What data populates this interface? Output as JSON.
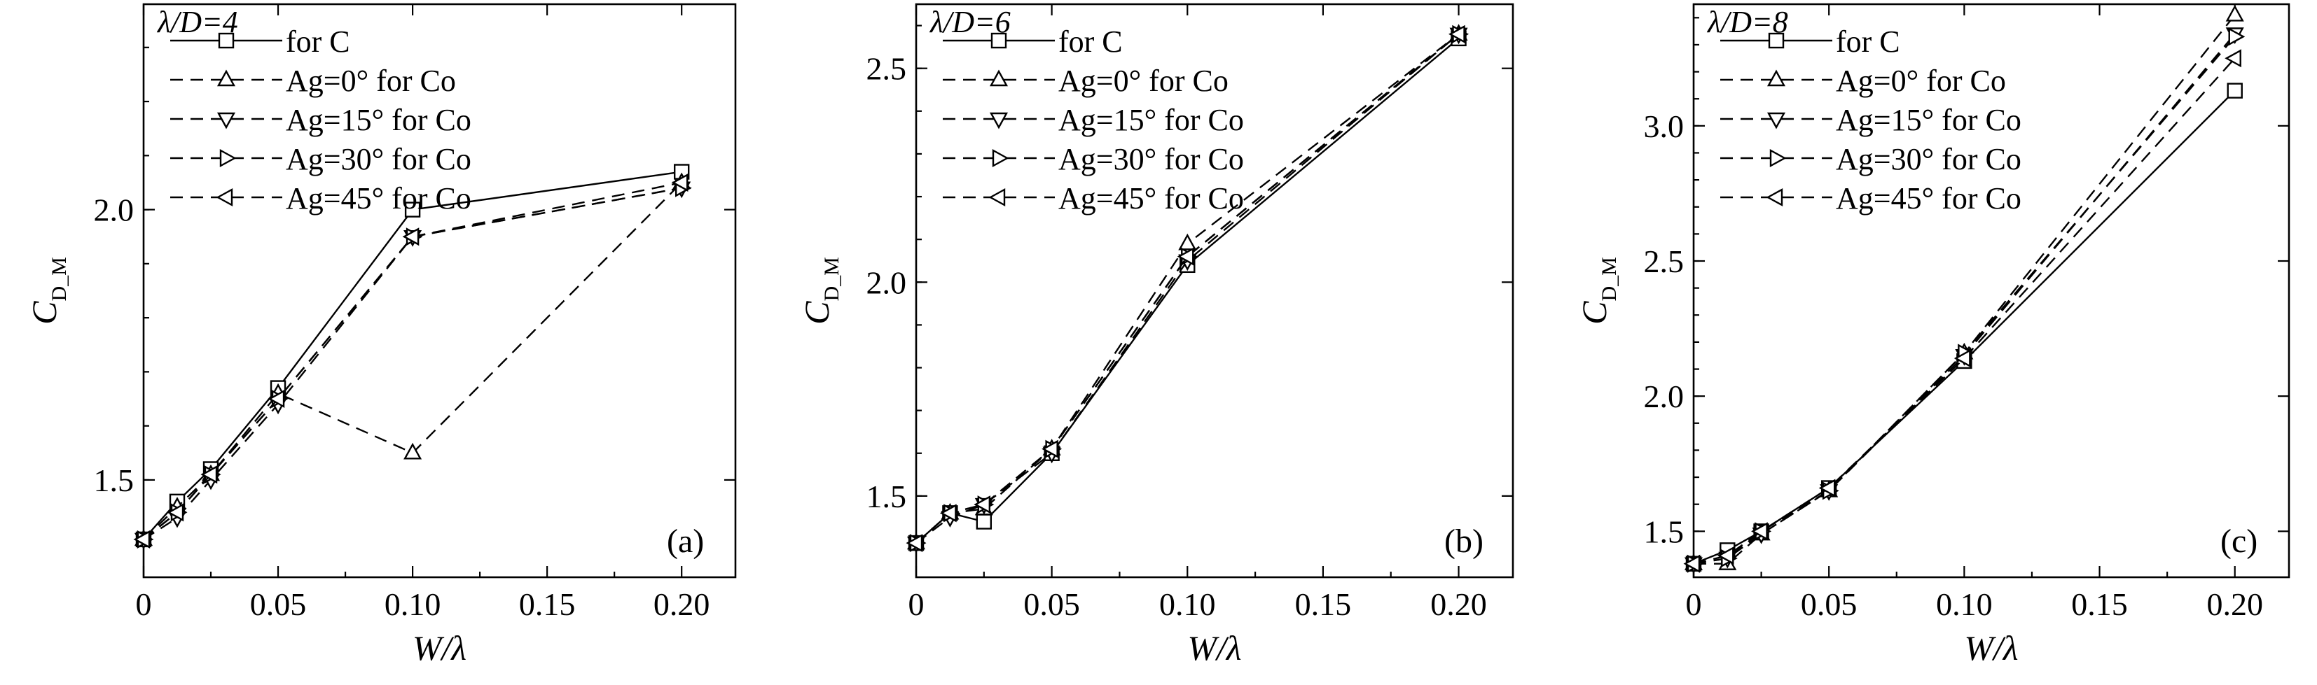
{
  "chart_data": [
    {
      "type": "line",
      "panel_label": "(a)",
      "xlabel": "W/λ",
      "ylabel": "C",
      "ylabel_sub": "D_M",
      "xlim": [
        0,
        0.22
      ],
      "ylim": [
        1.32,
        2.38
      ],
      "xticks": [
        0,
        0.05,
        0.1,
        0.15,
        0.2
      ],
      "xtick_labels": [
        "0",
        "0.05",
        "0.10",
        "0.15",
        "0.20"
      ],
      "yticks": [
        1.5,
        2.0
      ],
      "ytick_labels": [
        "1.5",
        "2.0"
      ],
      "legend_title": "λ/D=4",
      "x": [
        0,
        0.0125,
        0.025,
        0.05,
        0.1,
        0.2
      ],
      "series": [
        {
          "name": "for C",
          "marker": "square",
          "dash": "solid",
          "values": [
            1.39,
            1.46,
            1.52,
            1.67,
            2.0,
            2.07
          ]
        },
        {
          "name": "Ag=0° for Co",
          "marker": "triangle-up",
          "dash": "dashed",
          "values": [
            1.39,
            1.45,
            1.51,
            1.66,
            1.55,
            2.05
          ]
        },
        {
          "name": "Ag=15° for Co",
          "marker": "triangle-down",
          "dash": "dashed",
          "values": [
            1.39,
            1.43,
            1.5,
            1.64,
            1.95,
            2.04
          ]
        },
        {
          "name": "Ag=30° for Co",
          "marker": "triangle-right",
          "dash": "dashed",
          "values": [
            1.39,
            1.44,
            1.51,
            1.65,
            1.95,
            2.04
          ]
        },
        {
          "name": "Ag=45° for Co",
          "marker": "triangle-left",
          "dash": "dashed",
          "values": [
            1.39,
            1.44,
            1.51,
            1.65,
            1.95,
            2.05
          ]
        }
      ]
    },
    {
      "type": "line",
      "panel_label": "(b)",
      "xlabel": "W/λ",
      "ylabel": "C",
      "ylabel_sub": "D_M",
      "xlim": [
        0,
        0.22
      ],
      "ylim": [
        1.31,
        2.65
      ],
      "xticks": [
        0,
        0.05,
        0.1,
        0.15,
        0.2
      ],
      "xtick_labels": [
        "0",
        "0.05",
        "0.10",
        "0.15",
        "0.20"
      ],
      "yticks": [
        1.5,
        2.0,
        2.5
      ],
      "ytick_labels": [
        "1.5",
        "2.0",
        "2.5"
      ],
      "legend_title": "λ/D=6",
      "x": [
        0,
        0.0125,
        0.025,
        0.05,
        0.1,
        0.2
      ],
      "series": [
        {
          "name": "for C",
          "marker": "square",
          "dash": "solid",
          "values": [
            1.39,
            1.46,
            1.44,
            1.6,
            2.04,
            2.57
          ]
        },
        {
          "name": "Ag=0° for Co",
          "marker": "triangle-up",
          "dash": "dashed",
          "values": [
            1.39,
            1.46,
            1.47,
            1.61,
            2.09,
            2.58
          ]
        },
        {
          "name": "Ag=15° for Co",
          "marker": "triangle-down",
          "dash": "dashed",
          "values": [
            1.39,
            1.45,
            1.48,
            1.6,
            2.05,
            2.58
          ]
        },
        {
          "name": "Ag=30° for Co",
          "marker": "triangle-right",
          "dash": "dashed",
          "values": [
            1.39,
            1.46,
            1.48,
            1.61,
            2.06,
            2.58
          ]
        },
        {
          "name": "Ag=45° for Co",
          "marker": "triangle-left",
          "dash": "dashed",
          "values": [
            1.39,
            1.46,
            1.48,
            1.61,
            2.06,
            2.58
          ]
        }
      ]
    },
    {
      "type": "line",
      "panel_label": "(c)",
      "xlabel": "W/λ",
      "ylabel": "C",
      "ylabel_sub": "D_M",
      "xlim": [
        0,
        0.22
      ],
      "ylim": [
        1.33,
        3.45
      ],
      "xticks": [
        0,
        0.05,
        0.1,
        0.15,
        0.2
      ],
      "xtick_labels": [
        "0",
        "0.05",
        "0.10",
        "0.15",
        "0.20"
      ],
      "yticks": [
        1.5,
        2.0,
        2.5,
        3.0
      ],
      "ytick_labels": [
        "1.5",
        "2.0",
        "2.5",
        "3.0"
      ],
      "legend_title": "λ/D=8",
      "x": [
        0,
        0.0125,
        0.025,
        0.05,
        0.1,
        0.2
      ],
      "series": [
        {
          "name": "for C",
          "marker": "square",
          "dash": "solid",
          "values": [
            1.38,
            1.43,
            1.5,
            1.66,
            2.13,
            3.13
          ]
        },
        {
          "name": "Ag=0° for Co",
          "marker": "triangle-up",
          "dash": "dashed",
          "values": [
            1.38,
            1.38,
            1.49,
            1.65,
            2.16,
            3.41
          ]
        },
        {
          "name": "Ag=15° for Co",
          "marker": "triangle-down",
          "dash": "dashed",
          "values": [
            1.38,
            1.4,
            1.49,
            1.65,
            2.15,
            3.34
          ]
        },
        {
          "name": "Ag=30° for Co",
          "marker": "triangle-right",
          "dash": "dashed",
          "values": [
            1.38,
            1.4,
            1.5,
            1.65,
            2.16,
            3.33
          ]
        },
        {
          "name": "Ag=45° for Co",
          "marker": "triangle-left",
          "dash": "dashed",
          "values": [
            1.38,
            1.41,
            1.5,
            1.66,
            2.14,
            3.25
          ]
        }
      ]
    }
  ]
}
